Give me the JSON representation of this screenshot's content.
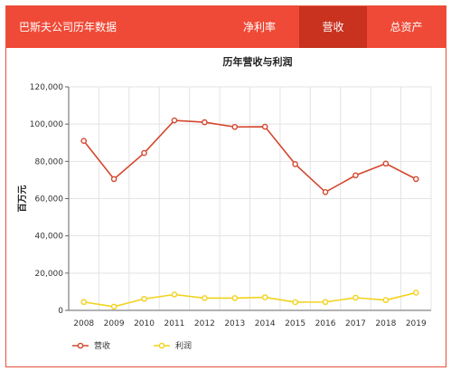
{
  "header": {
    "title": "巴斯夫公司历年数据",
    "tabs": [
      {
        "label": "净利率",
        "active": false
      },
      {
        "label": "营收",
        "active": true
      },
      {
        "label": "总资产",
        "active": false
      }
    ]
  },
  "colors": {
    "header_bg": "#ef4a37",
    "tab_active_bg": "#c8321f",
    "revenue": "#d4472f",
    "profit": "#f2d21b"
  },
  "chart_data": {
    "type": "line",
    "title": "历年营收与利润",
    "ylabel": "百万元",
    "xlabel": "",
    "x": [
      "2008",
      "2009",
      "2010",
      "2011",
      "2012",
      "2013",
      "2014",
      "2015",
      "2016",
      "2017",
      "2018",
      "2019"
    ],
    "ylim": [
      0,
      120000
    ],
    "yticks": [
      {
        "value": 0,
        "label": "0"
      },
      {
        "value": 20000,
        "label": "20,000"
      },
      {
        "value": 40000,
        "label": "40,000"
      },
      {
        "value": 60000,
        "label": "60,000"
      },
      {
        "value": 80000,
        "label": "80,000"
      },
      {
        "value": 100000,
        "label": "100,000"
      },
      {
        "value": 120000,
        "label": "120,000"
      }
    ],
    "grid": true,
    "legend_position": "bottom-left",
    "series": [
      {
        "name": "营收",
        "color": "#d4472f",
        "values": [
          91000,
          70500,
          84500,
          102000,
          101000,
          98500,
          98600,
          78500,
          63500,
          72500,
          78800,
          70500
        ]
      },
      {
        "name": "利润",
        "color": "#f2d21b",
        "values": [
          4500,
          2000,
          6200,
          8500,
          6600,
          6600,
          7000,
          4400,
          4500,
          6800,
          5500,
          9500
        ]
      }
    ]
  }
}
